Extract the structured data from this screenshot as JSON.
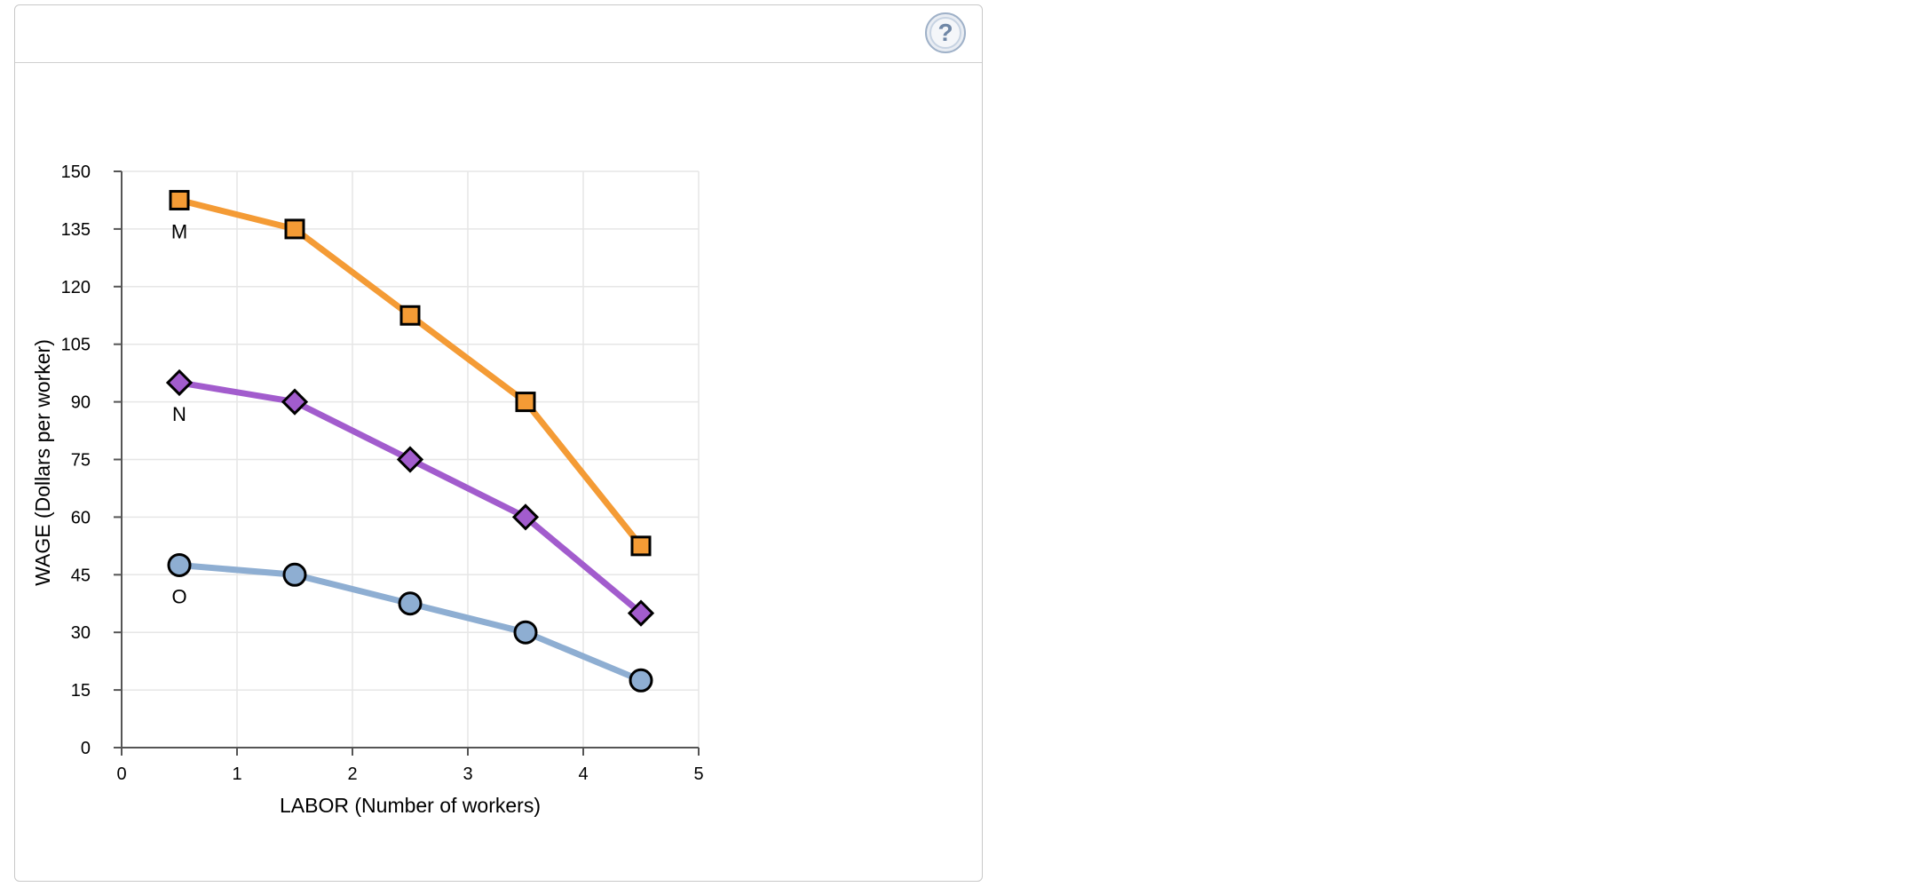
{
  "help": {
    "icon": "question-mark-icon",
    "glyph": "?"
  },
  "chart_data": {
    "type": "line",
    "title": "",
    "xlabel": "LABOR (Number of workers)",
    "ylabel": "WAGE (Dollars per worker)",
    "xlim": [
      0,
      5
    ],
    "ylim": [
      0,
      150
    ],
    "xticks": [
      0,
      1,
      2,
      3,
      4,
      5
    ],
    "yticks": [
      0,
      15,
      30,
      45,
      60,
      75,
      90,
      105,
      120,
      135,
      150
    ],
    "grid": true,
    "legend": "none",
    "x": [
      0.5,
      1.5,
      2.5,
      3.5,
      4.5
    ],
    "series": [
      {
        "name": "M",
        "values": [
          142.5,
          135,
          112.5,
          90,
          52.5
        ],
        "color": "#f49b35",
        "marker": "square"
      },
      {
        "name": "N",
        "values": [
          95,
          90,
          75,
          60,
          35
        ],
        "color": "#a25ccd",
        "marker": "diamond"
      },
      {
        "name": "O",
        "values": [
          47.5,
          45,
          37.5,
          30,
          17.5
        ],
        "color": "#8eaed2",
        "marker": "circle"
      }
    ]
  }
}
